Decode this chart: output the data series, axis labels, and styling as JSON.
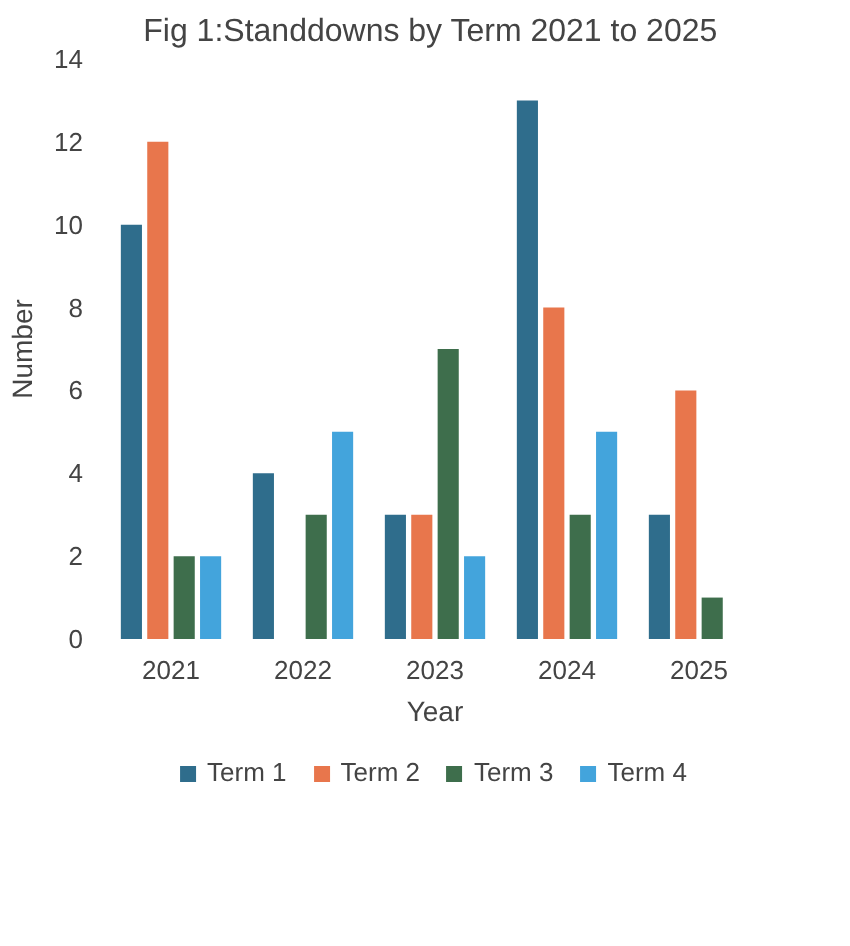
{
  "chart_data": {
    "type": "bar",
    "title": "Fig 1:Standdowns by Term  2021 to 2025",
    "xlabel": "Year",
    "ylabel": "Number",
    "categories": [
      "2021",
      "2022",
      "2023",
      "2024",
      "2025"
    ],
    "series": [
      {
        "name": "Term 1",
        "color": "#2f6d8c",
        "values": [
          10,
          4,
          3,
          13,
          3
        ]
      },
      {
        "name": "Term 2",
        "color": "#e8764c",
        "values": [
          12,
          null,
          3,
          8,
          6
        ]
      },
      {
        "name": "Term 3",
        "color": "#3e6e4c",
        "values": [
          2,
          3,
          7,
          3,
          1
        ]
      },
      {
        "name": "Term 4",
        "color": "#43a4dc",
        "values": [
          2,
          5,
          2,
          5,
          null
        ]
      }
    ],
    "ylim": [
      0,
      14
    ],
    "yticks": [
      0,
      2,
      4,
      6,
      8,
      10,
      12,
      14
    ],
    "grid": false,
    "legend": "bottom"
  }
}
